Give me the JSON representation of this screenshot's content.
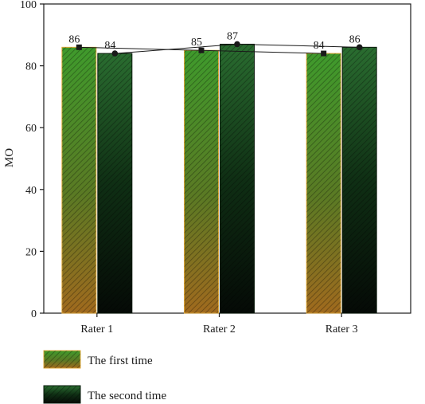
{
  "chart_data": {
    "type": "bar",
    "categories": [
      "Rater 1",
      "Rater 2",
      "Rater 3"
    ],
    "series": [
      {
        "name": "The first time",
        "values": [
          86,
          85,
          84
        ],
        "color_top": "#3f9a2c",
        "color_bottom": "#a06a1e",
        "border": "#e0a83a",
        "marker": "square"
      },
      {
        "name": "The second time",
        "values": [
          84,
          87,
          86
        ],
        "color_top": "#2a6d30",
        "color_bottom": "#050a06",
        "border": "#0a1a0c",
        "marker": "circle"
      }
    ],
    "ylabel": "MO",
    "ylim": [
      0,
      100
    ],
    "yticks": [
      0,
      20,
      40,
      60,
      80,
      100
    ],
    "legend_placement": "bottom-left",
    "grid": false
  }
}
